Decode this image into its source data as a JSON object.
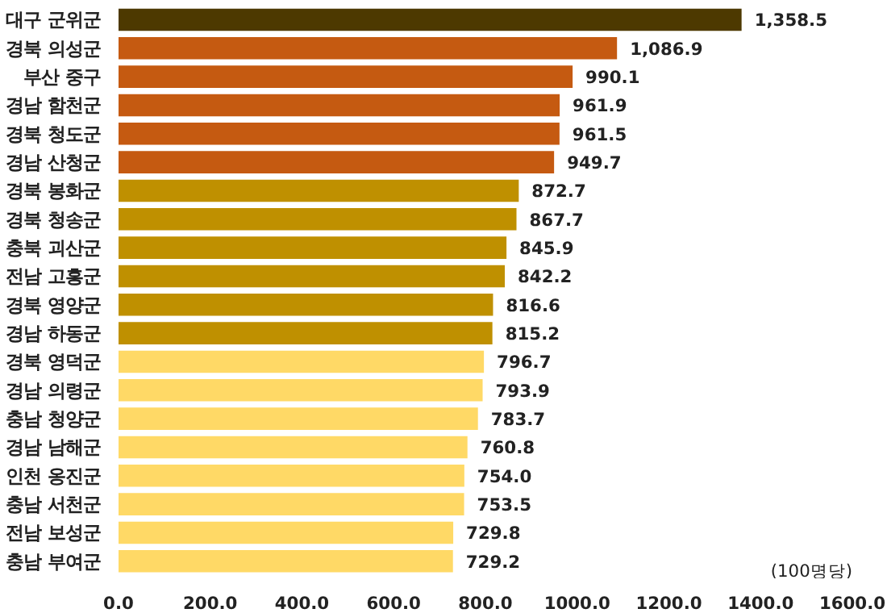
{
  "chart_data": {
    "type": "bar",
    "orientation": "horizontal",
    "categories": [
      "대구 군위군",
      "경북 의성군",
      "부산 중구",
      "경남 함천군",
      "경북 청도군",
      "경남 산청군",
      "경북 봉화군",
      "경북 청송군",
      "충북 괴산군",
      "전남 고흥군",
      "경북 영양군",
      "경남 하동군",
      "경북 영덕군",
      "경남 의령군",
      "충남 청양군",
      "경남 남해군",
      "인천 옹진군",
      "충남 서천군",
      "전남 보성군",
      "충남 부여군"
    ],
    "values": [
      1358.5,
      1086.9,
      990.1,
      961.9,
      961.5,
      949.7,
      872.7,
      867.7,
      845.9,
      842.2,
      816.6,
      815.2,
      796.7,
      793.9,
      783.7,
      760.8,
      754.0,
      753.5,
      729.8,
      729.2
    ],
    "colors": [
      "#4d3900",
      "#c55a11",
      "#c55a11",
      "#c55a11",
      "#c55a11",
      "#c55a11",
      "#bf9000",
      "#bf9000",
      "#bf9000",
      "#bf9000",
      "#bf9000",
      "#bf9000",
      "#ffd966",
      "#ffd966",
      "#ffd966",
      "#ffd966",
      "#ffd966",
      "#ffd966",
      "#ffd966",
      "#ffd966"
    ],
    "value_labels": [
      "1,358.5",
      "1,086.9",
      "990.1",
      "961.9",
      "961.5",
      "949.7",
      "872.7",
      "867.7",
      "845.9",
      "842.2",
      "816.6",
      "815.2",
      "796.7",
      "793.9",
      "783.7",
      "760.8",
      "754.0",
      "753.5",
      "729.8",
      "729.2"
    ],
    "xlim": [
      0,
      1600
    ],
    "xticks": [
      {
        "value": 0,
        "label": "0.0"
      },
      {
        "value": 200,
        "label": "200.0"
      },
      {
        "value": 400,
        "label": "400.0"
      },
      {
        "value": 600,
        "label": "600.0"
      },
      {
        "value": 800,
        "label": "800.0"
      },
      {
        "value": 1000,
        "label": "1000.0"
      },
      {
        "value": 1200,
        "label": "1200.0"
      },
      {
        "value": 1400,
        "label": "1400.0"
      },
      {
        "value": 1600,
        "label": "1600.0"
      }
    ],
    "grid": false,
    "annotations": [
      "(100명당)"
    ]
  }
}
